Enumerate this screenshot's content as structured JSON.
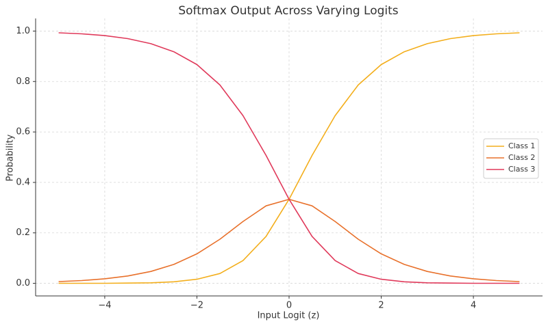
{
  "chart_data": {
    "type": "line",
    "title": "Softmax Output Across Varying Logits",
    "x_label": "Input Logit (z)",
    "y_label": "Probability",
    "x": [
      -5,
      -4.5,
      -4,
      -3.5,
      -3,
      -2.5,
      -2,
      -1.5,
      -1,
      -0.5,
      0,
      0.5,
      1,
      1.5,
      2,
      2.5,
      3,
      3.5,
      4,
      4.5,
      5
    ],
    "series": [
      {
        "name": "Class 1",
        "color": "#f3ae1b",
        "values": [
          0.0,
          0.0,
          0.0,
          0.001,
          0.002,
          0.006,
          0.016,
          0.039,
          0.09,
          0.186,
          0.333,
          0.507,
          0.665,
          0.786,
          0.867,
          0.918,
          0.95,
          0.97,
          0.982,
          0.989,
          0.993
        ]
      },
      {
        "name": "Class 2",
        "color": "#e8702a",
        "values": [
          0.007,
          0.011,
          0.018,
          0.029,
          0.047,
          0.075,
          0.117,
          0.175,
          0.245,
          0.307,
          0.333,
          0.307,
          0.245,
          0.175,
          0.117,
          0.075,
          0.047,
          0.029,
          0.018,
          0.011,
          0.007
        ]
      },
      {
        "name": "Class 3",
        "color": "#e0395a",
        "values": [
          0.993,
          0.989,
          0.982,
          0.97,
          0.95,
          0.918,
          0.867,
          0.786,
          0.665,
          0.507,
          0.333,
          0.186,
          0.09,
          0.039,
          0.016,
          0.006,
          0.002,
          0.001,
          0.0,
          0.0,
          0.0
        ]
      }
    ],
    "xlim": [
      -5.5,
      5.5
    ],
    "xticks": [
      {
        "value": -4,
        "label": "−4"
      },
      {
        "value": -2,
        "label": "−2"
      },
      0,
      2,
      4
    ],
    "ylim": [
      -0.05,
      1.05
    ],
    "yticks": [
      {
        "value": 0,
        "label": "0.0"
      },
      0.2,
      0.4,
      0.6,
      0.8,
      {
        "value": 1,
        "label": "1.0"
      }
    ],
    "grid": true,
    "legend": "right"
  }
}
